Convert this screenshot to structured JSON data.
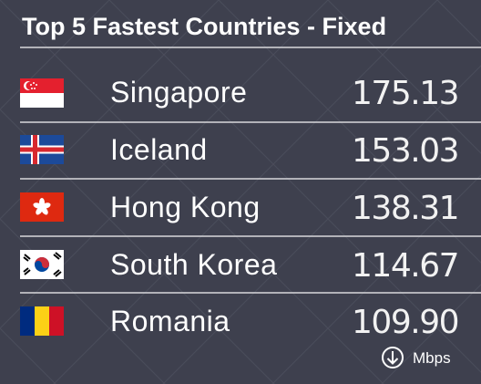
{
  "title": "Top 5 Fastest Countries - Fixed",
  "rows": [
    {
      "country": "Singapore",
      "speed": "175.13"
    },
    {
      "country": "Iceland",
      "speed": "153.03"
    },
    {
      "country": "Hong Kong",
      "speed": "138.31"
    },
    {
      "country": "South Korea",
      "speed": "114.67"
    },
    {
      "country": "Romania",
      "speed": "109.90"
    }
  ],
  "unit": "Mbps"
}
